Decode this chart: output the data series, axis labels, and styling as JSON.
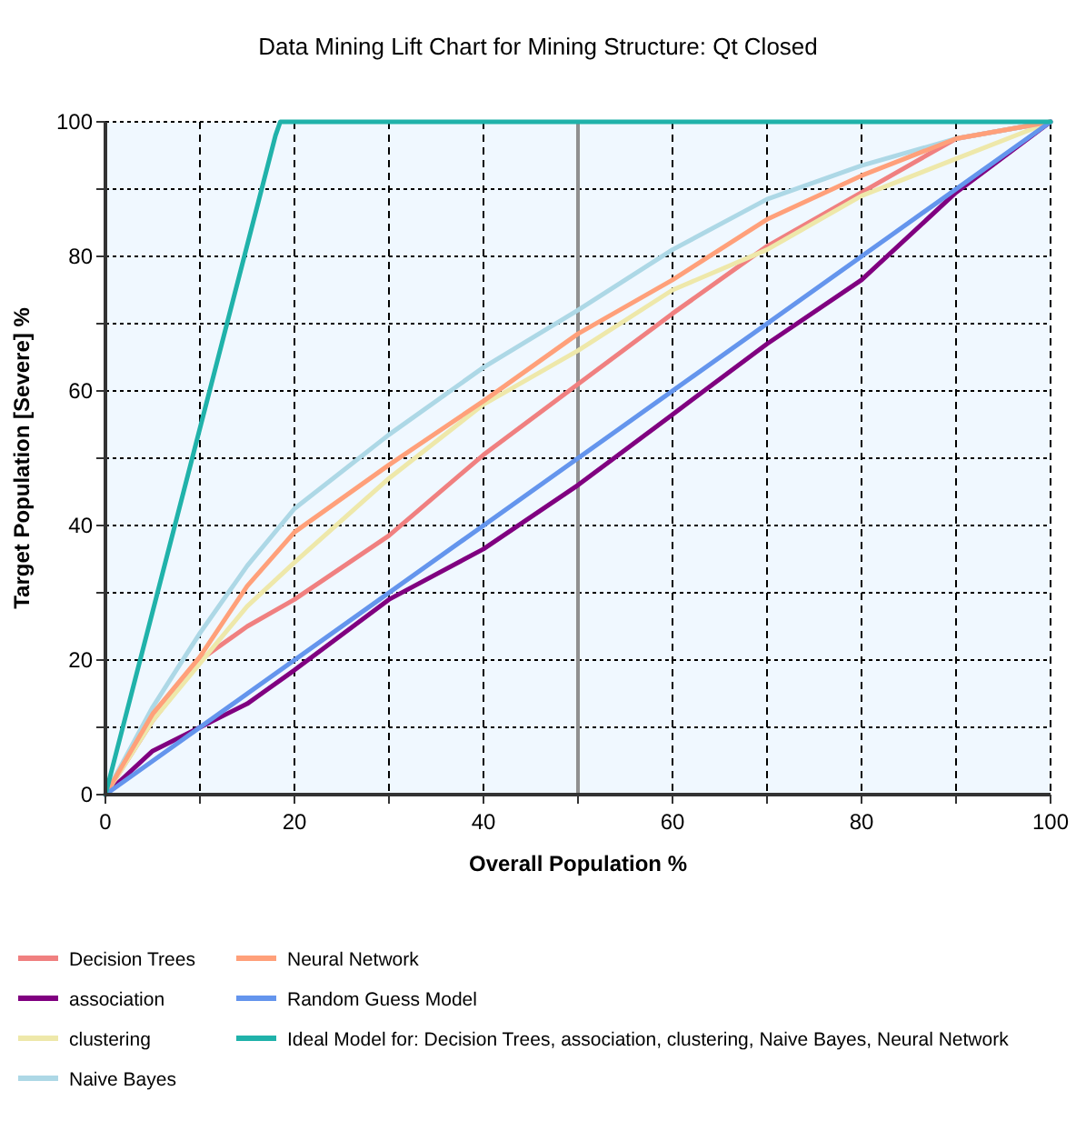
{
  "chart_data": {
    "type": "line",
    "title": "Data Mining Lift Chart for Mining Structure: Qt Closed",
    "xlabel": "Overall Population %",
    "ylabel": "Target Population [Severe] %",
    "xlim": [
      0,
      100
    ],
    "ylim": [
      0,
      100
    ],
    "xticks": [
      0,
      {
        "value": 10,
        "label": null
      },
      20,
      {
        "value": 30,
        "label": null
      },
      40,
      {
        "value": 50,
        "label": null
      },
      60,
      {
        "value": 70,
        "label": null
      },
      80,
      {
        "value": 90,
        "label": null
      },
      100
    ],
    "yticks": [
      0,
      {
        "value": 10,
        "label": null
      },
      20,
      {
        "value": 30,
        "label": null
      },
      40,
      {
        "value": 50,
        "label": null
      },
      60,
      {
        "value": 70,
        "label": null
      },
      80,
      {
        "value": 90,
        "label": null
      },
      100
    ],
    "grid": true,
    "legend": "bottom",
    "line_style": "solid",
    "ref_lines": [
      {
        "axis": "x",
        "value": 50,
        "label": null,
        "color": "#909090"
      }
    ],
    "series": [
      {
        "name": "Decision Trees",
        "color": "#f08080",
        "x": [
          0,
          5,
          10,
          15,
          20,
          30,
          40,
          50,
          60,
          70,
          80,
          90,
          100
        ],
        "values": [
          0,
          11,
          20,
          25,
          29,
          38.5,
          50.5,
          61,
          71.5,
          81.5,
          89.5,
          97.5,
          100
        ]
      },
      {
        "name": "association",
        "color": "#800080",
        "x": [
          0,
          5,
          10,
          15,
          20,
          30,
          40,
          50,
          60,
          70,
          80,
          90,
          100
        ],
        "values": [
          0,
          6.5,
          10,
          13.5,
          18.5,
          29,
          36.5,
          46,
          56.5,
          67,
          76.5,
          89.5,
          100
        ]
      },
      {
        "name": "clustering",
        "color": "#eee8aa",
        "x": [
          0,
          5,
          10,
          15,
          20,
          30,
          40,
          50,
          60,
          70,
          80,
          90,
          100
        ],
        "values": [
          0,
          11,
          19.5,
          28,
          34.5,
          47,
          58,
          66,
          75,
          81,
          89,
          94.5,
          100
        ]
      },
      {
        "name": "Naive Bayes",
        "color": "#add8e6",
        "x": [
          0,
          5,
          10,
          15,
          20,
          30,
          40,
          50,
          60,
          70,
          80,
          90,
          100
        ],
        "values": [
          0,
          13,
          24,
          34,
          42.5,
          53.5,
          63.5,
          72,
          81,
          88.5,
          93.5,
          97.5,
          100
        ]
      },
      {
        "name": "Neural Network",
        "color": "#ffa07a",
        "x": [
          0,
          5,
          10,
          15,
          20,
          30,
          40,
          50,
          60,
          70,
          80,
          90,
          100
        ],
        "values": [
          0,
          12,
          20.5,
          31,
          39,
          49,
          58.5,
          68.5,
          76.5,
          85.5,
          92,
          97.5,
          100
        ]
      },
      {
        "name": "Random Guess Model",
        "color": "#6495ed",
        "x": [
          0,
          100
        ],
        "values": [
          0,
          100
        ]
      },
      {
        "name": "Ideal Model for: Decision Trees, association, clustering, Naive Bayes, Neural Network",
        "color": "#20b2aa",
        "x": [
          0,
          18,
          18.5,
          100
        ],
        "values": [
          0,
          98,
          100,
          100
        ]
      }
    ]
  }
}
